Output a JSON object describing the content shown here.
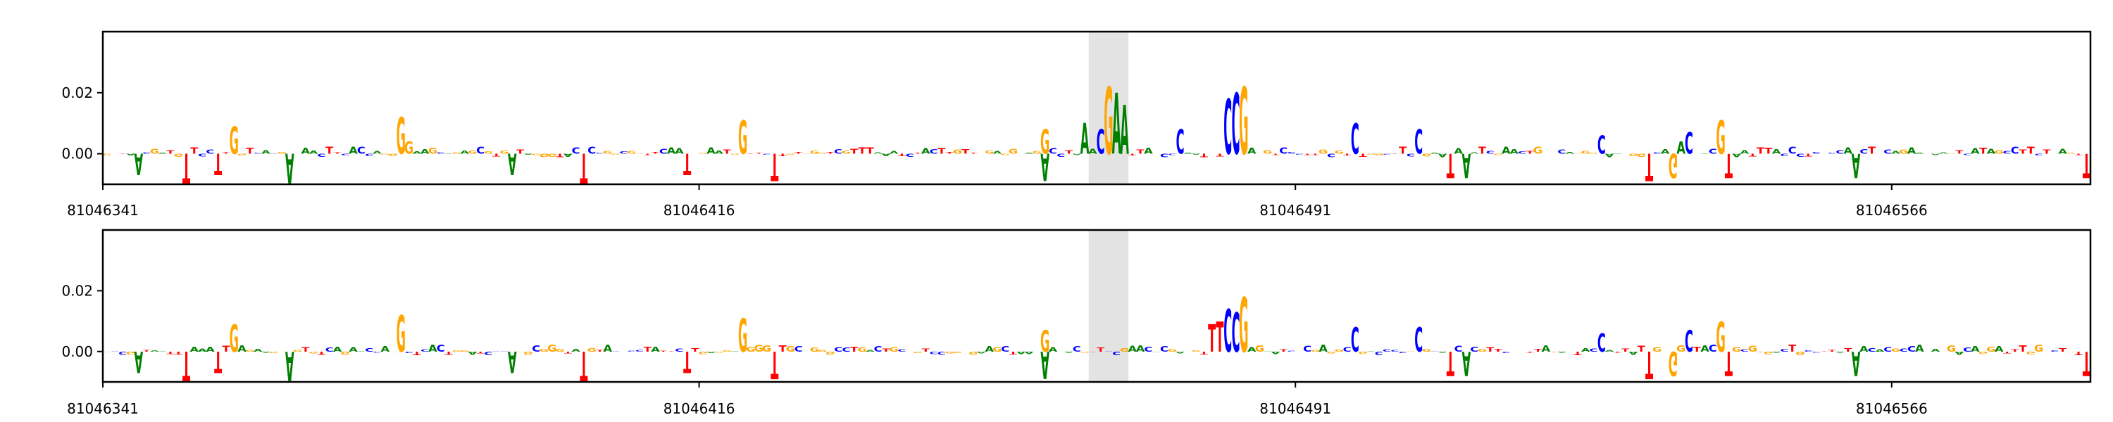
{
  "colors": {
    "A": "#008000",
    "C": "#0000ff",
    "G": "#ffa500",
    "T": "#ff0000",
    "highlight": "#e3e3e3",
    "axis": "#000000"
  },
  "chart_data": [
    {
      "type": "sequence-logo",
      "title": "",
      "xlabel": "",
      "ylabel": "",
      "x_start": 81046341,
      "x_end": 81046591,
      "xticks": [
        "81046341",
        "81046416",
        "81046491",
        "81046566"
      ],
      "yticks": [
        "0.02",
        "0.00"
      ],
      "ylim": [
        -0.01,
        0.04
      ],
      "highlight": [
        81046465,
        81046470
      ],
      "peaks": [
        {
          "pos": 81046357,
          "letter": "G",
          "value": 0.009
        },
        {
          "pos": 81046378,
          "letter": "G",
          "value": 0.012
        },
        {
          "pos": 81046421,
          "letter": "G",
          "value": 0.011
        },
        {
          "pos": 81046459,
          "letter": "G",
          "value": 0.008
        },
        {
          "pos": 81046464,
          "letter": "A",
          "value": 0.01
        },
        {
          "pos": 81046466,
          "letter": "C",
          "value": 0.008
        },
        {
          "pos": 81046467,
          "letter": "G",
          "value": 0.022
        },
        {
          "pos": 81046468,
          "letter": "A",
          "value": 0.02
        },
        {
          "pos": 81046469,
          "letter": "A",
          "value": 0.016
        },
        {
          "pos": 81046476,
          "letter": "C",
          "value": 0.008
        },
        {
          "pos": 81046482,
          "letter": "C",
          "value": 0.018
        },
        {
          "pos": 81046483,
          "letter": "C",
          "value": 0.02
        },
        {
          "pos": 81046484,
          "letter": "G",
          "value": 0.022
        },
        {
          "pos": 81046498,
          "letter": "C",
          "value": 0.01
        },
        {
          "pos": 81046506,
          "letter": "C",
          "value": 0.008
        },
        {
          "pos": 81046544,
          "letter": "G",
          "value": 0.011
        },
        {
          "pos": 81046540,
          "letter": "C",
          "value": 0.007
        },
        {
          "pos": 81046529,
          "letter": "C",
          "value": 0.006
        },
        {
          "pos": 81046539,
          "letter": "A",
          "value": 0.004
        },
        {
          "pos": 81046379,
          "letter": "G",
          "value": 0.004
        },
        {
          "pos": 81046345,
          "letter": "A",
          "value": -0.007
        },
        {
          "pos": 81046351,
          "letter": "T",
          "value": -0.01
        },
        {
          "pos": 81046355,
          "letter": "T",
          "value": -0.007
        },
        {
          "pos": 81046364,
          "letter": "A",
          "value": -0.01
        },
        {
          "pos": 81046392,
          "letter": "A",
          "value": -0.007
        },
        {
          "pos": 81046401,
          "letter": "T",
          "value": -0.01
        },
        {
          "pos": 81046414,
          "letter": "T",
          "value": -0.007
        },
        {
          "pos": 81046425,
          "letter": "T",
          "value": -0.009
        },
        {
          "pos": 81046459,
          "letter": "A",
          "value": -0.009
        },
        {
          "pos": 81046510,
          "letter": "T",
          "value": -0.008
        },
        {
          "pos": 81046512,
          "letter": "A",
          "value": -0.008
        },
        {
          "pos": 81046535,
          "letter": "T",
          "value": -0.009
        },
        {
          "pos": 81046538,
          "letter": "G",
          "value": -0.008
        },
        {
          "pos": 81046545,
          "letter": "T",
          "value": -0.008
        },
        {
          "pos": 81046561,
          "letter": "A",
          "value": -0.008
        },
        {
          "pos": 81046590,
          "letter": "T",
          "value": -0.008
        }
      ]
    },
    {
      "type": "sequence-logo",
      "title": "",
      "xlabel": "",
      "ylabel": "",
      "x_start": 81046341,
      "x_end": 81046591,
      "xticks": [
        "81046341",
        "81046416",
        "81046491",
        "81046566"
      ],
      "yticks": [
        "0.02",
        "0.00"
      ],
      "ylim": [
        -0.01,
        0.04
      ],
      "highlight": [
        81046465,
        81046470
      ],
      "peaks": [
        {
          "pos": 81046357,
          "letter": "G",
          "value": 0.009
        },
        {
          "pos": 81046378,
          "letter": "G",
          "value": 0.012
        },
        {
          "pos": 81046421,
          "letter": "G",
          "value": 0.011
        },
        {
          "pos": 81046459,
          "letter": "G",
          "value": 0.007
        },
        {
          "pos": 81046480,
          "letter": "T",
          "value": 0.009
        },
        {
          "pos": 81046481,
          "letter": "T",
          "value": 0.01
        },
        {
          "pos": 81046482,
          "letter": "C",
          "value": 0.014
        },
        {
          "pos": 81046483,
          "letter": "C",
          "value": 0.013
        },
        {
          "pos": 81046484,
          "letter": "G",
          "value": 0.018
        },
        {
          "pos": 81046498,
          "letter": "C",
          "value": 0.008
        },
        {
          "pos": 81046506,
          "letter": "C",
          "value": 0.008
        },
        {
          "pos": 81046544,
          "letter": "G",
          "value": 0.01
        },
        {
          "pos": 81046540,
          "letter": "C",
          "value": 0.007
        },
        {
          "pos": 81046529,
          "letter": "C",
          "value": 0.006
        },
        {
          "pos": 81046345,
          "letter": "A",
          "value": -0.007
        },
        {
          "pos": 81046351,
          "letter": "T",
          "value": -0.01
        },
        {
          "pos": 81046355,
          "letter": "T",
          "value": -0.007
        },
        {
          "pos": 81046364,
          "letter": "A",
          "value": -0.01
        },
        {
          "pos": 81046392,
          "letter": "A",
          "value": -0.007
        },
        {
          "pos": 81046401,
          "letter": "T",
          "value": -0.01
        },
        {
          "pos": 81046414,
          "letter": "T",
          "value": -0.007
        },
        {
          "pos": 81046425,
          "letter": "T",
          "value": -0.009
        },
        {
          "pos": 81046459,
          "letter": "A",
          "value": -0.009
        },
        {
          "pos": 81046510,
          "letter": "T",
          "value": -0.008
        },
        {
          "pos": 81046512,
          "letter": "A",
          "value": -0.008
        },
        {
          "pos": 81046535,
          "letter": "T",
          "value": -0.009
        },
        {
          "pos": 81046538,
          "letter": "G",
          "value": -0.008
        },
        {
          "pos": 81046545,
          "letter": "T",
          "value": -0.008
        },
        {
          "pos": 81046561,
          "letter": "A",
          "value": -0.008
        },
        {
          "pos": 81046590,
          "letter": "T",
          "value": -0.008
        }
      ]
    }
  ]
}
